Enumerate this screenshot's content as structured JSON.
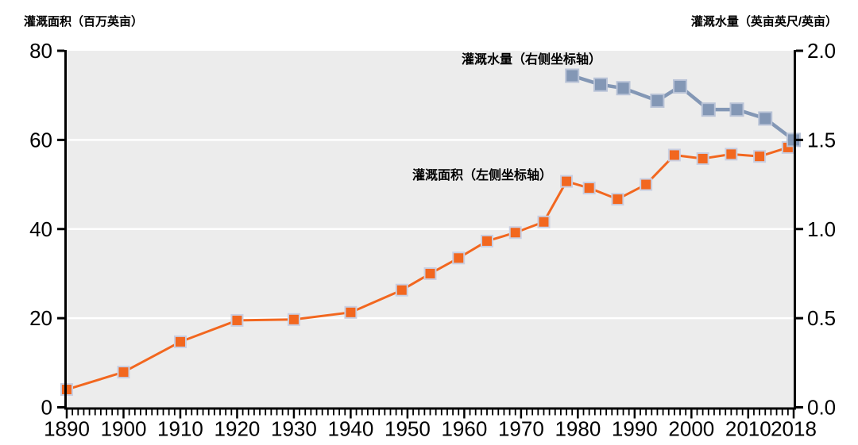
{
  "titles": {
    "left_axis_title": "灌溉面积（百万英亩）",
    "right_axis_title": "灌溉水量（英亩英尺/英亩）"
  },
  "chart_data": {
    "type": "line",
    "title": "",
    "legend_position": "inline-annotations",
    "grid": "horizontal-white-lines",
    "plot_background": "#ececec",
    "gridline_color": "#ffffff",
    "axis_color": "#000000",
    "series_labels": {
      "water": "灌溉水量（右侧坐标轴）",
      "area": "灌溉面积（左侧坐标轴）"
    },
    "x_axis": {
      "min": 1890,
      "max": 2018,
      "minor_tick_step": 1,
      "major_tick_years": [
        1890,
        1900,
        1910,
        1920,
        1930,
        1940,
        1950,
        1960,
        1970,
        1980,
        1990,
        2000,
        2010,
        2018
      ],
      "tick_labels": [
        "1890",
        "1900",
        "1910",
        "1920",
        "1930",
        "1940",
        "1950",
        "1960",
        "1970",
        "1980",
        "1990",
        "2000",
        "2010",
        "2018"
      ]
    },
    "left_axis": {
      "title": "灌溉面积（百万英亩）",
      "min": 0,
      "max": 80,
      "tick_values": [
        0,
        20,
        40,
        60,
        80
      ],
      "tick_labels": [
        "0",
        "20",
        "40",
        "60",
        "80"
      ]
    },
    "right_axis": {
      "title": "灌溉水量（英亩英尺/英亩）",
      "min": 0,
      "max": 2,
      "tick_values": [
        0,
        0.5,
        1,
        1.5,
        2
      ],
      "tick_labels": [
        "0.0",
        "0.5",
        "1.0",
        "1.5",
        "2.0"
      ]
    },
    "gridlines_left_values": [
      20,
      40,
      60
    ],
    "series": [
      {
        "id": "irrigated-area",
        "label": "灌溉面积（左侧坐标轴）",
        "axis": "left",
        "color": "#f2671f",
        "marker_border": "#c9cfe2",
        "marker_size": 14,
        "line_width": 3,
        "x": [
          1890,
          1900,
          1910,
          1920,
          1930,
          1940,
          1949,
          1954,
          1959,
          1964,
          1969,
          1974,
          1978,
          1982,
          1987,
          1992,
          1997,
          2002,
          2007,
          2012,
          2017
        ],
        "values": [
          4.0,
          7.9,
          14.7,
          19.5,
          19.7,
          21.3,
          26.3,
          30.0,
          33.5,
          37.3,
          39.2,
          41.6,
          50.7,
          49.2,
          46.7,
          50.0,
          56.6,
          55.8,
          56.8,
          56.3,
          58.3
        ]
      },
      {
        "id": "applied-water",
        "label": "灌溉水量（右侧坐标轴）",
        "axis": "right",
        "color": "#8397b5",
        "marker_border": "#b9c3d7",
        "marker_size": 16,
        "line_width": 4.5,
        "x": [
          1979,
          1984,
          1988,
          1994,
          1998,
          2003,
          2008,
          2013,
          2018
        ],
        "values": [
          1.86,
          1.81,
          1.79,
          1.72,
          1.8,
          1.67,
          1.67,
          1.62,
          1.5
        ]
      }
    ]
  }
}
